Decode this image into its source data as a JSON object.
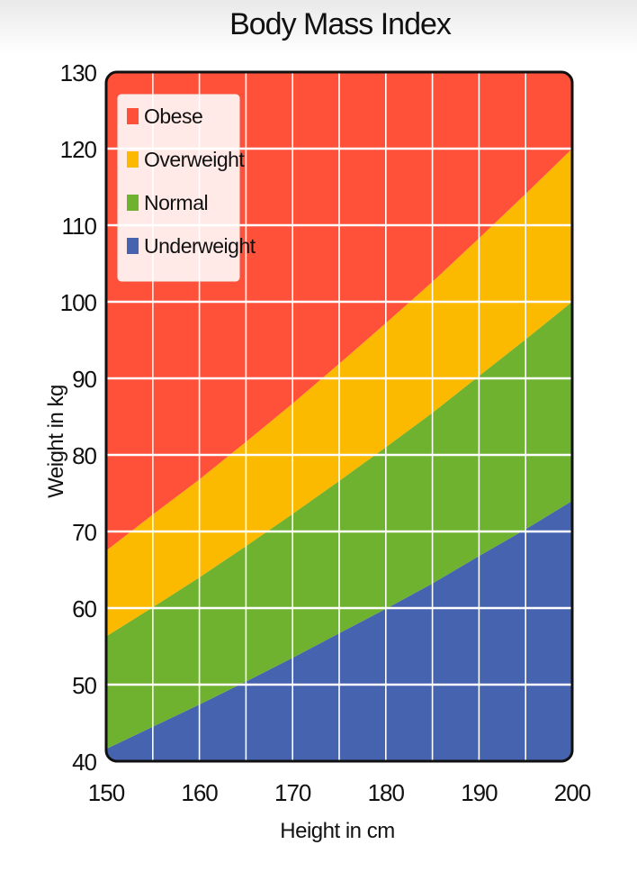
{
  "chart_data": {
    "type": "area",
    "title": "Body Mass Index",
    "xlabel": "Height in cm",
    "ylabel": "Weight in kg",
    "xlim": [
      150,
      200
    ],
    "ylim": [
      40,
      130
    ],
    "x_ticks": [
      150,
      160,
      170,
      180,
      190,
      200
    ],
    "y_ticks": [
      40,
      50,
      60,
      70,
      80,
      90,
      100,
      110,
      120,
      130
    ],
    "grid": true,
    "legend_position": "top-left",
    "x": [
      150,
      155,
      160,
      165,
      170,
      175,
      180,
      185,
      190,
      195,
      200
    ],
    "series": [
      {
        "name": "Underweight",
        "color": "#4663b0",
        "upper": [
          41.6,
          44.5,
          47.4,
          50.4,
          53.5,
          56.7,
          59.9,
          63.2,
          66.8,
          70.3,
          74.0
        ]
      },
      {
        "name": "Normal",
        "color": "#6eb22f",
        "upper": [
          56.3,
          60.1,
          64.0,
          68.1,
          72.3,
          76.6,
          81.0,
          85.5,
          90.3,
          95.1,
          100.0
        ]
      },
      {
        "name": "Overweight",
        "color": "#fbb900",
        "upper": [
          67.5,
          72.2,
          76.8,
          81.7,
          86.7,
          91.9,
          97.2,
          102.6,
          108.3,
          114.1,
          120.0
        ]
      },
      {
        "name": "Obese",
        "color": "#ff513a",
        "upper": [
          130,
          130,
          130,
          130,
          130,
          130,
          130,
          130,
          130,
          130,
          130
        ]
      }
    ],
    "legend_order": [
      "Obese",
      "Overweight",
      "Normal",
      "Underweight"
    ]
  }
}
